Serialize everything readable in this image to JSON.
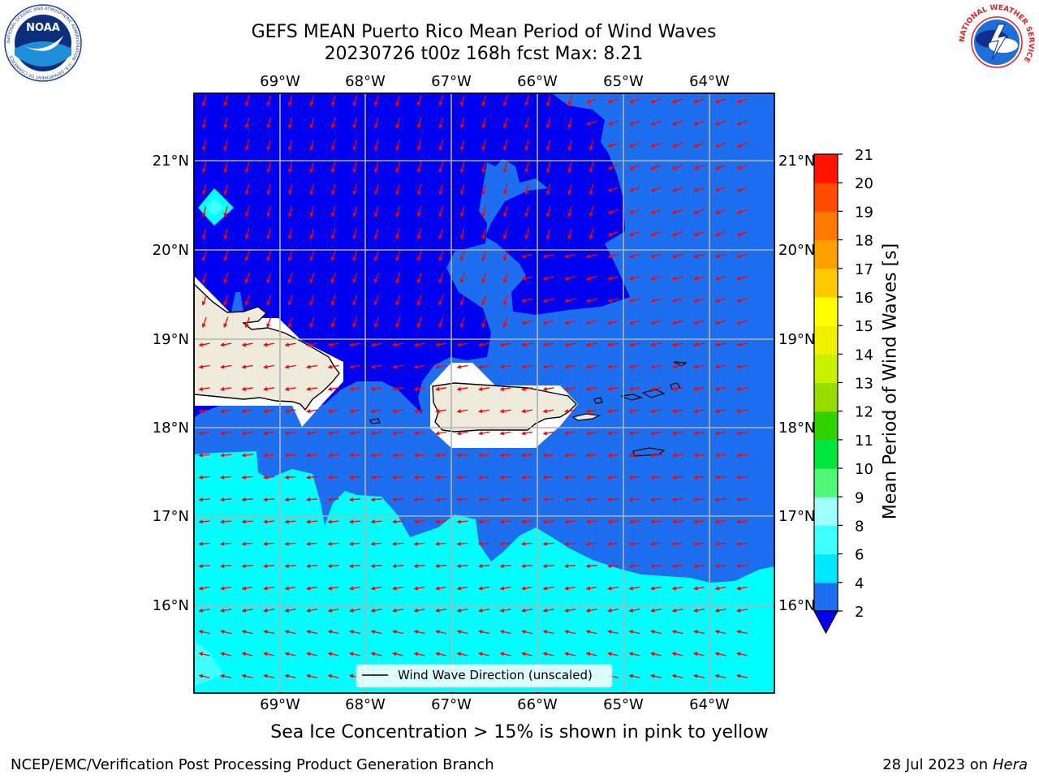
{
  "title": {
    "line1": "GEFS MEAN Puerto Rico Mean Period of Wind Waves",
    "line2": "20230726 t00z 168h fcst   Max: 8.21"
  },
  "logos": {
    "left": {
      "text": "NOAA",
      "ring_text": "NATIONAL OCEANIC AND ATMOSPHERIC ADMINISTRATION · U.S. DEPARTMENT OF COMMERCE"
    },
    "right": {
      "ring_text": "NATIONAL WEATHER SERVICE"
    }
  },
  "map": {
    "lon_labels": [
      "69°W",
      "68°W",
      "67°W",
      "66°W",
      "65°W",
      "64°W"
    ],
    "lat_labels": [
      "21°N",
      "20°N",
      "19°N",
      "18°N",
      "17°N",
      "16°N"
    ],
    "legend_label": "Wind Wave Direction (unscaled)",
    "colors": {
      "dark_blue": "#0000f0",
      "blue": "#1e6ff0",
      "cyan": "#00ffff",
      "light_cyan": "#40ffff",
      "land": "#eeebdc",
      "arrow": "#ff0000",
      "grid": "#b3b3b3"
    }
  },
  "colorbar": {
    "label": "Mean Period of Wind Waves [s]",
    "ticks": [
      "2",
      "4",
      "6",
      "8",
      "9",
      "10",
      "11",
      "12",
      "13",
      "14",
      "15",
      "16",
      "17",
      "18",
      "19",
      "20",
      "21"
    ],
    "colors": [
      "#1e6ff0",
      "#00e8ff",
      "#40ffff",
      "#a0ffff",
      "#50fa78",
      "#00e63c",
      "#32d200",
      "#96dc00",
      "#c8f000",
      "#f0f000",
      "#ffff00",
      "#ffc800",
      "#ffa000",
      "#ff7800",
      "#ff4b00",
      "#ff1400"
    ],
    "under_color": "#0000f0"
  },
  "caption": "Sea Ice Concentration > 15% is shown in pink to yellow",
  "footer": {
    "left": "NCEP/EMC/Verification Post Processing Product Generation Branch",
    "right_prefix": "28 Jul 2023 on ",
    "right_host": "Hera"
  }
}
